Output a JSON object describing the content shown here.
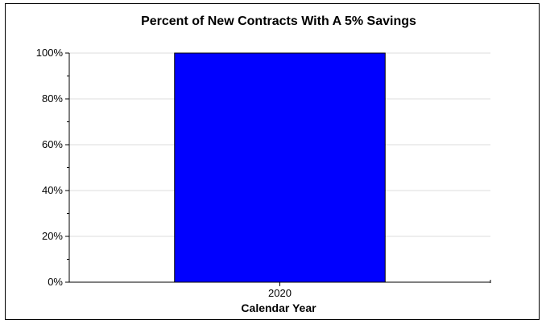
{
  "chart_data": {
    "type": "bar",
    "title": "Percent of New Contracts With A 5% Savings",
    "xlabel": "Calendar Year",
    "ylabel": "",
    "categories": [
      "2020"
    ],
    "values": [
      100
    ],
    "ylim": [
      0,
      100
    ],
    "yticks": [
      0,
      20,
      40,
      60,
      80,
      100
    ],
    "ytick_labels": [
      "0%",
      "20%",
      "40%",
      "60%",
      "80%",
      "100%"
    ],
    "bar_color": "#0000FF",
    "grid": true,
    "legend": "none"
  }
}
